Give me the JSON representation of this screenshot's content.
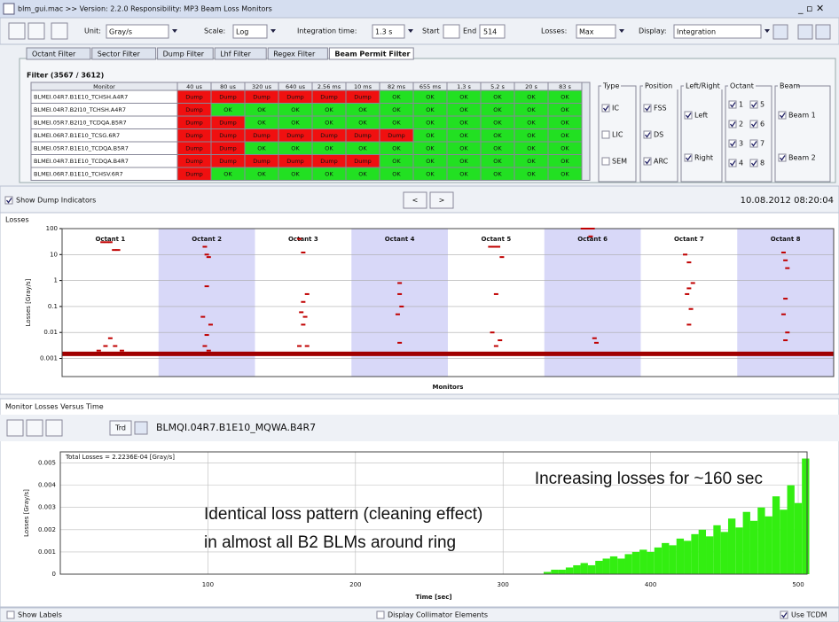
{
  "window": {
    "title": "blm_gui.mac >> Version: 2.2.0 Responsibility: MP3 Beam Loss Monitors"
  },
  "toolbar": {
    "unit_label": "Unit:",
    "unit": "Gray/s",
    "scale_label": "Scale:",
    "scale": "Log",
    "integration_label": "Integration time:",
    "integration": "1.3 s",
    "start_label": "Start",
    "end_label": "End",
    "end": "514",
    "losses_label": "Losses:",
    "losses": "Max",
    "display_label": "Display:",
    "display": "Integration"
  },
  "tabs": [
    "Octant Filter",
    "Sector Filter",
    "Dump Filter",
    "Lhf Filter",
    "Regex Filter",
    "Beam Permit Filter"
  ],
  "active_tab": 5,
  "filter": {
    "title": "Filter (3567 / 3612)",
    "columns": [
      "Monitor",
      "40 us",
      "80 us",
      "320 us",
      "640 us",
      "2.56 ms",
      "10 ms",
      "82 ms",
      "655 ms",
      "1.3 s",
      "5.2 s",
      "20 s",
      "83 s"
    ],
    "status_colors": {
      "Dump": "#f01010",
      "OK": "#22e022"
    },
    "rows": [
      [
        "BLMEI.04R7.B1E10_TCHSH.A4R7",
        "Dump",
        "Dump",
        "Dump",
        "Dump",
        "Dump",
        "Dump",
        "OK",
        "OK",
        "OK",
        "OK",
        "OK",
        "OK"
      ],
      [
        "BLMEI.04R7.B2I10_TCHSH.A4R7",
        "Dump",
        "OK",
        "OK",
        "OK",
        "OK",
        "OK",
        "OK",
        "OK",
        "OK",
        "OK",
        "OK",
        "OK"
      ],
      [
        "BLMEI.05R7.B2I10_TCDQA.B5R7",
        "Dump",
        "Dump",
        "OK",
        "OK",
        "OK",
        "OK",
        "OK",
        "OK",
        "OK",
        "OK",
        "OK",
        "OK"
      ],
      [
        "BLMEI.06R7.B1E10_TCSG.6R7",
        "Dump",
        "Dump",
        "Dump",
        "Dump",
        "Dump",
        "Dump",
        "Dump",
        "OK",
        "OK",
        "OK",
        "OK",
        "OK"
      ],
      [
        "BLMEI.05R7.B1E10_TCDQA.B5R7",
        "Dump",
        "Dump",
        "OK",
        "OK",
        "OK",
        "OK",
        "OK",
        "OK",
        "OK",
        "OK",
        "OK",
        "OK"
      ],
      [
        "BLMEI.04R7.B1E10_TCDQA.B4R7",
        "Dump",
        "Dump",
        "Dump",
        "Dump",
        "Dump",
        "Dump",
        "OK",
        "OK",
        "OK",
        "OK",
        "OK",
        "OK"
      ],
      [
        "BLMEI.06R7.B1E10_TCHSV.6R7",
        "Dump",
        "OK",
        "OK",
        "OK",
        "OK",
        "OK",
        "OK",
        "OK",
        "OK",
        "OK",
        "OK",
        "OK"
      ]
    ]
  },
  "panel": [
    {
      "title": "Type",
      "items": [
        "IC",
        "LIC",
        "SEM"
      ],
      "checked": [
        true,
        false,
        false
      ]
    },
    {
      "title": "Position",
      "items": [
        "FSS",
        "DS",
        "ARC"
      ],
      "checked": [
        true,
        true,
        true
      ]
    },
    {
      "title": "Left/Right",
      "items": [
        "Left",
        "Right"
      ],
      "checked": [
        true,
        true
      ]
    },
    {
      "title": "Octant",
      "items": [
        "1",
        "5",
        "2",
        "6",
        "3",
        "7",
        "4",
        "8"
      ],
      "checked": [
        true,
        true,
        true,
        true,
        true,
        true,
        true,
        true
      ]
    },
    {
      "title": "Beam",
      "items": [
        "Beam 1",
        "Beam 2"
      ],
      "checked": [
        true,
        true
      ]
    }
  ],
  "dump_indicators": "Show Dump Indicators",
  "nav": [
    "<",
    ">"
  ],
  "timestamp": "10.08.2012 08:20:04",
  "monitor_section": {
    "title": "Monitor Losses Versus Time",
    "monitor": "BLMQI.04R7.B1E10_MQWA.B4R7",
    "trend_button": "Trd"
  },
  "footer": {
    "show_labels": "Show Labels",
    "collimators": "Display Collimator Elements",
    "use": "Use TCDM"
  },
  "chart_data": [
    {
      "type": "scatter",
      "title": "Losses",
      "categories": [
        "Octant 1",
        "Octant 2",
        "Octant 3",
        "Octant 4",
        "Octant 5",
        "Octant 6",
        "Octant 7",
        "Octant 8"
      ],
      "band_colors": [
        "#ffffff",
        "#d8d8f8"
      ],
      "x_label": "Monitors",
      "y_label": "Losses [Gray/s]",
      "log_y": true,
      "xlim": [
        0,
        800
      ],
      "ylim": [
        0.0002,
        100
      ],
      "yticks": [
        100,
        10,
        1,
        0.1,
        0.01,
        0.001
      ],
      "grid": true,
      "threshold": 0.0015,
      "threshold_color": "#a00000",
      "series": [
        {
          "name": "Losses",
          "color": "#c00000",
          "x": [
            42,
            46,
            50,
            54,
            58,
            50,
            45,
            55,
            38,
            62,
            148,
            150,
            152,
            150,
            146,
            154,
            150,
            148,
            152,
            246,
            250,
            254,
            250,
            248,
            252,
            250,
            246,
            254,
            350,
            350,
            352,
            348,
            350,
            444,
            448,
            452,
            456,
            450,
            446,
            454,
            450,
            540,
            542,
            546,
            548,
            550,
            552,
            554,
            646,
            650,
            654,
            650,
            648,
            652,
            650,
            748,
            750,
            752,
            750,
            748,
            752,
            750
          ],
          "values": [
            30,
            30,
            30,
            15,
            15,
            0.006,
            0.003,
            0.003,
            0.002,
            0.002,
            20,
            10,
            8,
            0.6,
            0.04,
            0.02,
            0.008,
            0.003,
            0.002,
            40,
            12,
            0.3,
            0.15,
            0.06,
            0.04,
            0.02,
            0.003,
            0.003,
            0.8,
            0.3,
            0.1,
            0.05,
            0.004,
            20,
            20,
            20,
            8,
            0.3,
            0.01,
            0.005,
            0.003,
            100,
            100,
            100,
            50,
            100,
            0.006,
            0.004,
            10,
            5,
            0.8,
            0.5,
            0.3,
            0.08,
            0.02,
            12,
            6,
            3,
            0.2,
            0.05,
            0.01,
            0.005
          ]
        }
      ]
    },
    {
      "type": "bar",
      "legend": "Total Losses = 2.2236E-04 [Gray/s]",
      "x_label": "Time [sec]",
      "y_label": "Losses [Gray/s]",
      "color": "#33ee11",
      "xlim": [
        0,
        506
      ],
      "ylim": [
        0,
        0.0055
      ],
      "xticks": [
        100,
        200,
        300,
        400,
        500
      ],
      "yticks": [
        0,
        0.001,
        0.002,
        0.003,
        0.004,
        0.005
      ],
      "grid": true,
      "annotations": [
        "Increasing losses for ~160 sec",
        "Identical loss pattern (cleaning effect)",
        "in almost all B2 BLMs around ring"
      ],
      "annotation_color": "#f07010",
      "x": [
        330,
        335,
        340,
        345,
        350,
        355,
        360,
        365,
        370,
        375,
        380,
        385,
        390,
        395,
        400,
        405,
        410,
        415,
        420,
        425,
        430,
        435,
        440,
        445,
        450,
        455,
        460,
        465,
        470,
        475,
        480,
        485,
        490,
        495,
        500,
        505
      ],
      "values": [
        0.0001,
        0.0002,
        0.0002,
        0.0003,
        0.0004,
        0.0005,
        0.0004,
        0.0006,
        0.0007,
        0.0008,
        0.0007,
        0.0009,
        0.001,
        0.0011,
        0.001,
        0.0012,
        0.0014,
        0.0013,
        0.0016,
        0.0015,
        0.0018,
        0.002,
        0.0017,
        0.0022,
        0.0019,
        0.0025,
        0.0021,
        0.0028,
        0.0024,
        0.003,
        0.0026,
        0.0035,
        0.0029,
        0.004,
        0.0032,
        0.0052
      ]
    }
  ]
}
